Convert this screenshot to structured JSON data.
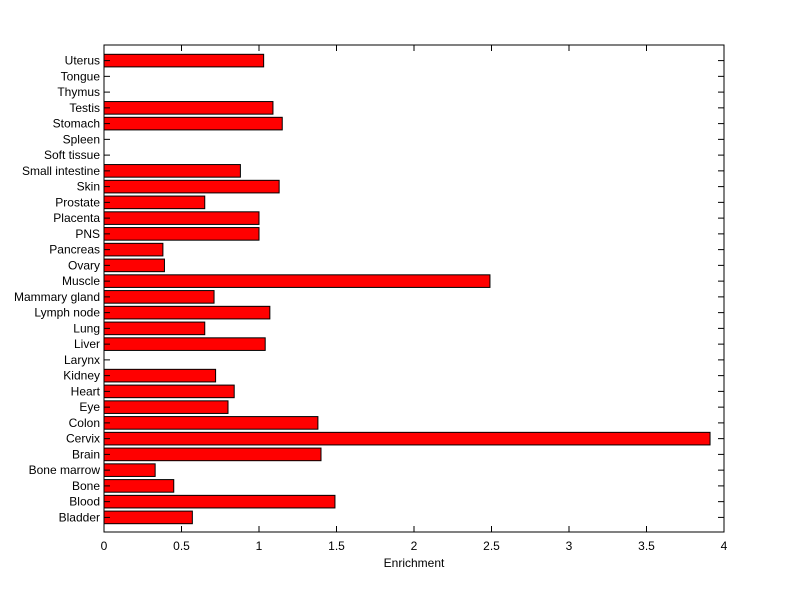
{
  "chart_data": {
    "type": "bar",
    "orientation": "horizontal",
    "categories": [
      "Bladder",
      "Blood",
      "Bone",
      "Bone marrow",
      "Brain",
      "Cervix",
      "Colon",
      "Eye",
      "Heart",
      "Kidney",
      "Larynx",
      "Liver",
      "Lung",
      "Lymph node",
      "Mammary gland",
      "Muscle",
      "Ovary",
      "Pancreas",
      "PNS",
      "Placenta",
      "Prostate",
      "Skin",
      "Small intestine",
      "Soft tissue",
      "Spleen",
      "Stomach",
      "Testis",
      "Thymus",
      "Tongue",
      "Uterus"
    ],
    "values": [
      0.57,
      1.49,
      0.45,
      0.33,
      1.4,
      3.91,
      1.38,
      0.8,
      0.84,
      0.72,
      0,
      1.04,
      0.65,
      1.07,
      0.71,
      2.49,
      0.39,
      0.38,
      1.0,
      1.0,
      0.65,
      1.13,
      0.88,
      0,
      0,
      1.15,
      1.09,
      0,
      0,
      1.03
    ],
    "xlabel": "Enrichment",
    "ylabel": "",
    "title": "",
    "xlim": [
      0,
      4
    ],
    "xticks": [
      "0",
      "0.5",
      "1",
      "1.5",
      "2",
      "2.5",
      "3",
      "3.5",
      "4"
    ],
    "grid": false,
    "bar_color": "#ff0000",
    "bar_edge_color": "#000000"
  }
}
